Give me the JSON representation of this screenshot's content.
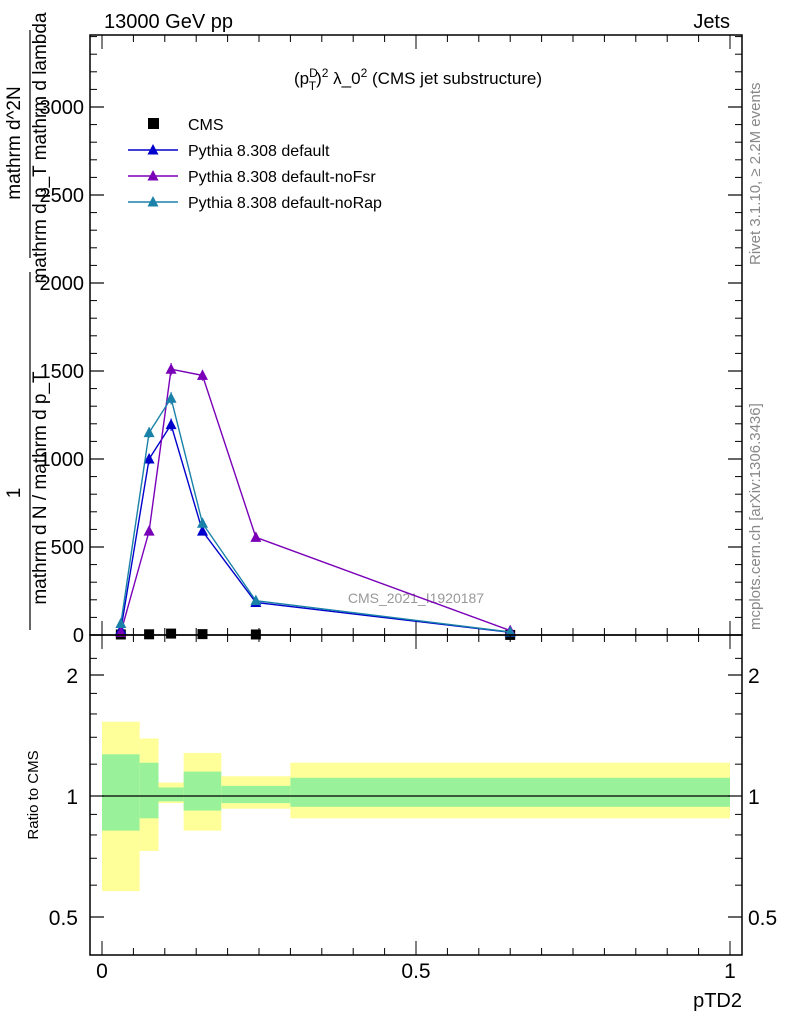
{
  "header": {
    "left": "13000 GeV pp",
    "right": "Jets"
  },
  "side_labels": {
    "rivet": "Rivet 3.1.10, ≥ 2.2M events",
    "mcplots": "mcplots.cern.ch [arXiv:1306.3436]"
  },
  "chart_data": [
    {
      "type": "line",
      "title": "(p_T^D)^2 λ_0^2 (CMS jet substructure)",
      "ylabel_top": "mathrm d^2N",
      "ylabel_mid": "mathrm d p_T mathrm d lambda",
      "ylabel_one": "1",
      "ylabel_bottom": "mathrm d N / mathrm d p_T",
      "watermark": "CMS_2021_I1920187",
      "xlim": [
        0,
        1
      ],
      "ylim": [
        0,
        3400
      ],
      "yticks": [
        0,
        500,
        1000,
        1500,
        2000,
        2500,
        3000
      ],
      "ytick_labels": [
        "0",
        "500",
        "1000",
        "1500",
        "2000",
        "2500",
        "3000"
      ],
      "legend_position": "top-left",
      "series": [
        {
          "name": "CMS",
          "color": "#000000",
          "marker": "square",
          "x": [
            0.03,
            0.075,
            0.11,
            0.16,
            0.245,
            0.65
          ],
          "y": [
            3,
            4,
            8,
            5,
            3,
            0.5
          ]
        },
        {
          "name": "Pythia 8.308 default",
          "color": "#0000cc",
          "marker": "triangle",
          "x": [
            0.03,
            0.075,
            0.11,
            0.16,
            0.245,
            0.65
          ],
          "y": [
            30,
            1000,
            1195,
            590,
            185,
            15
          ],
          "err": [
            5,
            30,
            35,
            20,
            10,
            3
          ]
        },
        {
          "name": "Pythia 8.308 default-noFsr",
          "color": "#7a00b8",
          "marker": "triangle",
          "x": [
            0.03,
            0.075,
            0.11,
            0.16,
            0.245,
            0.65
          ],
          "y": [
            15,
            590,
            1510,
            1475,
            555,
            25
          ],
          "err": [
            5,
            25,
            35,
            30,
            15,
            3
          ]
        },
        {
          "name": "Pythia 8.308 default-noRap",
          "color": "#1a82a8",
          "marker": "triangle",
          "x": [
            0.03,
            0.075,
            0.11,
            0.16,
            0.245,
            0.65
          ],
          "y": [
            65,
            1150,
            1345,
            635,
            195,
            17
          ],
          "err": [
            8,
            30,
            35,
            20,
            10,
            3
          ]
        }
      ]
    },
    {
      "type": "area",
      "ylabel": "Ratio to CMS",
      "xlabel": "pTD2",
      "xlim": [
        0,
        1
      ],
      "ylim": [
        0.4,
        2.3
      ],
      "log_y": true,
      "yticks": [
        0.5,
        1,
        2
      ],
      "ytick_labels": [
        "0.5",
        "1",
        "2"
      ],
      "xticks": [
        0,
        0.5,
        1
      ],
      "xtick_labels": [
        "0",
        "0.5",
        "1"
      ],
      "bands": [
        {
          "x0": 0.0,
          "x1": 0.06,
          "inner": [
            0.82,
            1.27
          ],
          "outer": [
            0.58,
            1.53
          ]
        },
        {
          "x0": 0.06,
          "x1": 0.09,
          "inner": [
            0.88,
            1.21
          ],
          "outer": [
            0.73,
            1.39
          ]
        },
        {
          "x0": 0.09,
          "x1": 0.13,
          "inner": [
            0.97,
            1.05
          ],
          "outer": [
            0.96,
            1.08
          ]
        },
        {
          "x0": 0.13,
          "x1": 0.19,
          "inner": [
            0.92,
            1.15
          ],
          "outer": [
            0.82,
            1.28
          ]
        },
        {
          "x0": 0.19,
          "x1": 0.3,
          "inner": [
            0.96,
            1.06
          ],
          "outer": [
            0.93,
            1.12
          ]
        },
        {
          "x0": 0.3,
          "x1": 1.0,
          "inner": [
            0.94,
            1.11
          ],
          "outer": [
            0.88,
            1.21
          ]
        }
      ],
      "inner_color": "#99f299",
      "outer_color": "#ffff99",
      "reference": 1
    }
  ]
}
